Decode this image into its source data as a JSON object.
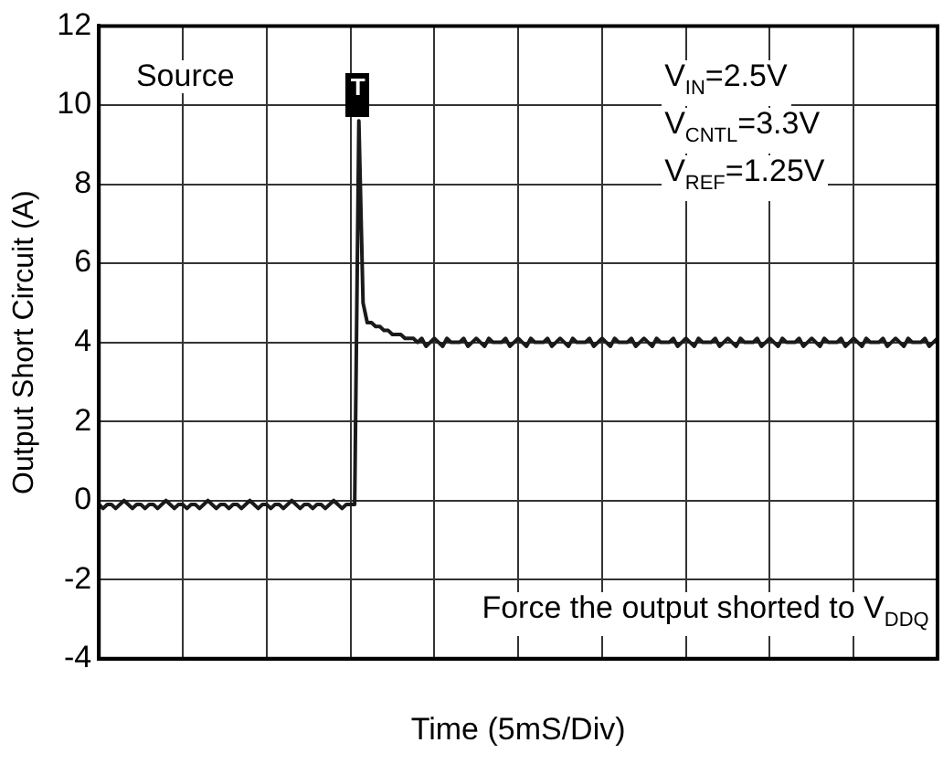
{
  "chart_data": {
    "type": "line",
    "xlabel": "Time (5mS/Div)",
    "ylabel": "Output Short Circuit (A)",
    "annotations": [
      "Source",
      "V$_{IN}$=2.5V",
      "V$_{CNTL}$=3.3V",
      "V$_{REF}$=1.25V",
      "Force the output shorted to V$_{DDQ}$",
      "T"
    ],
    "categories": [
      null,
      null,
      null,
      null,
      null,
      null,
      null,
      null,
      null,
      null,
      null,
      null,
      null,
      null,
      null,
      null,
      null,
      null,
      null,
      null,
      null,
      null,
      null,
      null,
      null,
      null,
      null,
      null,
      null,
      null,
      null,
      null,
      null,
      null,
      null,
      null,
      null,
      null,
      null,
      null,
      null,
      null,
      null,
      null,
      null,
      null,
      null,
      null,
      null,
      null,
      null,
      null,
      null,
      null,
      null,
      null,
      null,
      null,
      null,
      null,
      null,
      null,
      null,
      null,
      null,
      null,
      null,
      null,
      null,
      null,
      null,
      null,
      null,
      null,
      null,
      null,
      null,
      null,
      null,
      null,
      null,
      null,
      null,
      null,
      null,
      null,
      null,
      null,
      null,
      null,
      null,
      null,
      null,
      null,
      null,
      null,
      null,
      null,
      null,
      null,
      null,
      null,
      null,
      null,
      null,
      null,
      null,
      null,
      null,
      null,
      null,
      null,
      null,
      null,
      null,
      null,
      null,
      null,
      null,
      null,
      null,
      null,
      null,
      null,
      null,
      null,
      null,
      null,
      null,
      null,
      null,
      null,
      null,
      null,
      null,
      null,
      null,
      null,
      null,
      null,
      null,
      null,
      null,
      null,
      null,
      null,
      null,
      null,
      null,
      null,
      null,
      null,
      null,
      null,
      null,
      null,
      null,
      null,
      null,
      null,
      null,
      null,
      null,
      null,
      null,
      null,
      null,
      null,
      null,
      null,
      null,
      null,
      null,
      null,
      null,
      null,
      null,
      null,
      null,
      null,
      null,
      null,
      null,
      null,
      null,
      null,
      null,
      null,
      null,
      null,
      null,
      null,
      null,
      null,
      null,
      null,
      null,
      null,
      null,
      null,
      null
    ],
    "series": [
      {
        "color": "#1a1a1a",
        "values": [
          -0.1,
          -0.2,
          -0.1,
          -0.1,
          -0.2,
          -0.1,
          0,
          -0.1,
          -0.2,
          -0.1,
          -0.1,
          -0.2,
          -0.1,
          -0.1,
          -0.2,
          -0.1,
          0,
          -0.1,
          -0.2,
          -0.1,
          -0.1,
          -0.2,
          -0.1,
          -0.1,
          -0.2,
          -0.1,
          0,
          -0.1,
          -0.2,
          -0.1,
          -0.1,
          -0.2,
          -0.1,
          -0.1,
          -0.2,
          -0.1,
          0,
          -0.1,
          -0.2,
          -0.1,
          -0.1,
          -0.2,
          -0.1,
          -0.1,
          -0.2,
          -0.1,
          0,
          -0.1,
          -0.2,
          -0.1,
          -0.1,
          -0.2,
          -0.1,
          -0.1,
          -0.2,
          -0.1,
          0,
          -0.1,
          -0.2,
          -0.1,
          -0.1,
          -0.1,
          9.6,
          5,
          4.5,
          4.5,
          4.4,
          4.4,
          4.3,
          4.3,
          4.2,
          4.2,
          4.2,
          4.1,
          4.1,
          4.1,
          4,
          4.1,
          3.9,
          4,
          4.1,
          4,
          3.9,
          4.1,
          4,
          4,
          4,
          4.1,
          3.9,
          4,
          4.1,
          4,
          3.9,
          4.1,
          4,
          4,
          4,
          4.1,
          3.9,
          4,
          4.1,
          4,
          3.9,
          4.1,
          4,
          4,
          4,
          4.1,
          3.9,
          4,
          4.1,
          4,
          3.9,
          4.1,
          4,
          4,
          4,
          4.1,
          3.9,
          4,
          4.1,
          4,
          3.9,
          4.1,
          4,
          4,
          4,
          4.1,
          3.9,
          4,
          4.1,
          4,
          3.9,
          4.1,
          4,
          4,
          4,
          4.1,
          3.9,
          4,
          4.1,
          4,
          3.9,
          4.1,
          4,
          4,
          4,
          4.1,
          3.9,
          4,
          4.1,
          4,
          3.9,
          4.1,
          4,
          4,
          4,
          4.1,
          3.9,
          4,
          4.1,
          4,
          3.9,
          4.1,
          4,
          4,
          4,
          4.1,
          3.9,
          4,
          4.1,
          4,
          3.9,
          4.1,
          4,
          4,
          4,
          4.1,
          3.9,
          4,
          4.1,
          4,
          3.9,
          4.1,
          4,
          4,
          4,
          4.1,
          3.9,
          4,
          4.1,
          4,
          3.9,
          4.1,
          4,
          4,
          4,
          4.1,
          3.9,
          4,
          4.1
        ]
      }
    ],
    "ylim": [
      -4,
      12
    ],
    "yticks": [
      -4,
      -2,
      0,
      2,
      4,
      6,
      8,
      10,
      12
    ],
    "grid": true,
    "legend": false,
    "marker": "none",
    "line_style": "solid"
  }
}
